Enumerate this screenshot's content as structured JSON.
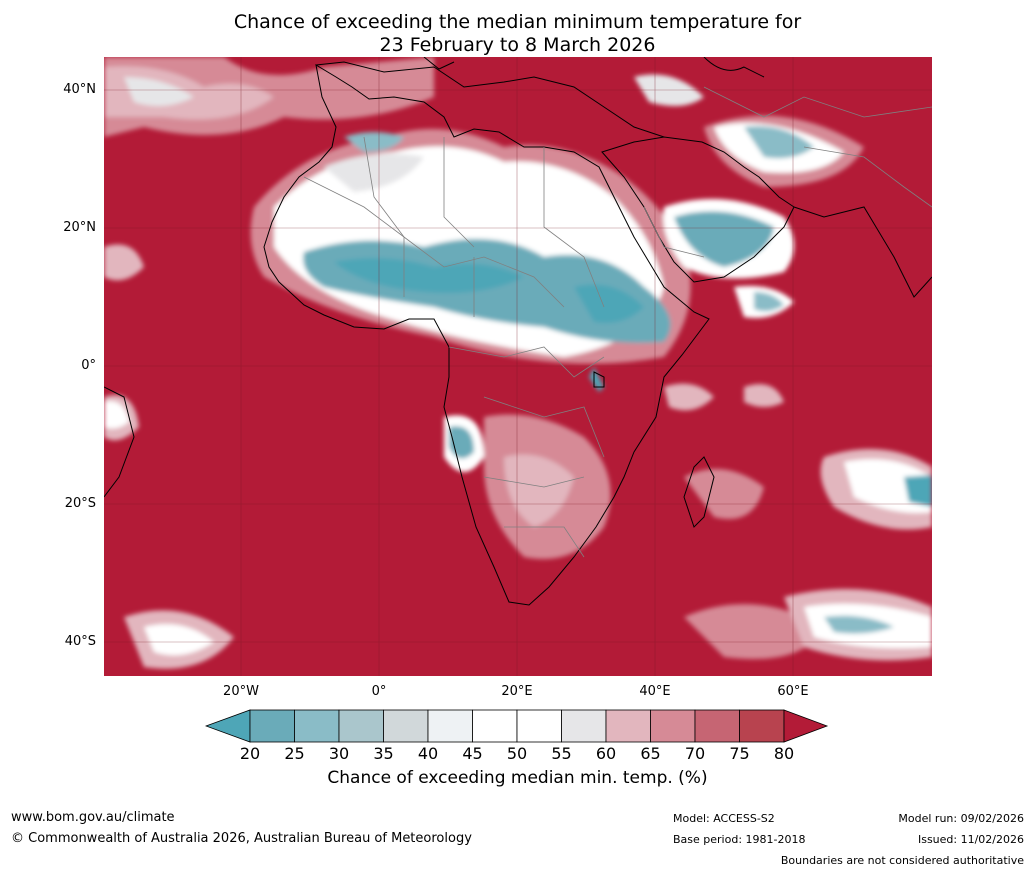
{
  "title": {
    "line1": "Chance of exceeding the median minimum temperature for",
    "line2": "23 February to 8 March 2026"
  },
  "map": {
    "lat_labels": [
      "40°N",
      "20°N",
      "0°",
      "20°S",
      "40°S"
    ],
    "lon_labels": [
      "20°W",
      "0°",
      "20°E",
      "40°E",
      "60°E"
    ],
    "colors": {
      "high": "#b31b37",
      "mid_high": "#d6828f",
      "neutral": "#ffffff",
      "light_grey": "#e4e6e8",
      "low": "#4ea6b7",
      "land_border": "#000000",
      "country_border": "#808080"
    }
  },
  "colorbar": {
    "ticks": [
      "20",
      "25",
      "30",
      "35",
      "40",
      "45",
      "50",
      "55",
      "60",
      "65",
      "70",
      "75",
      "80"
    ],
    "colors": [
      "#4ea6b7",
      "#6aabb9",
      "#8abcc7",
      "#aac6cc",
      "#d1d8da",
      "#eef2f4",
      "#ffffff",
      "#ffffff",
      "#e6e6e8",
      "#e2b6be",
      "#d68a96",
      "#c66573",
      "#b8434f",
      "#b31b37"
    ],
    "label": "Chance of exceeding median min. temp. (%)"
  },
  "footer": {
    "website": "www.bom.gov.au/climate",
    "copyright": "© Commonwealth of Australia 2026, Australian Bureau of Meteorology",
    "model": "Model: ACCESS-S2",
    "base_period": "Base period: 1981-2018",
    "model_run": "Model run: 09/02/2026",
    "issued": "Issued: 11/02/2026",
    "disclaimer": "Boundaries are not considered authoritative"
  }
}
